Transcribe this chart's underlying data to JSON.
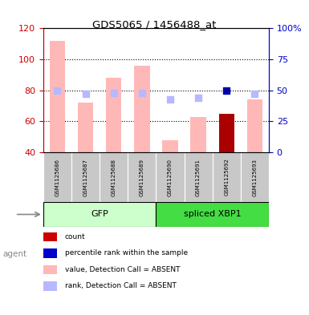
{
  "title": "GDS5065 / 1456488_at",
  "samples": [
    "GSM1125686",
    "GSM1125687",
    "GSM1125688",
    "GSM1125689",
    "GSM1125690",
    "GSM1125691",
    "GSM1125692",
    "GSM1125693"
  ],
  "groups": [
    {
      "name": "GFP",
      "indices": [
        0,
        1,
        2,
        3
      ],
      "bg_color": "#ccffcc"
    },
    {
      "name": "spliced XBP1",
      "indices": [
        4,
        5,
        6,
        7
      ],
      "bg_color": "#44dd44"
    }
  ],
  "ylim_left": [
    40,
    120
  ],
  "ylim_right": [
    0,
    100
  ],
  "yticks_left": [
    40,
    60,
    80,
    100,
    120
  ],
  "ytick_labels_right": [
    "0",
    "25",
    "50",
    "75",
    "100%"
  ],
  "absent_value_bars": [
    112,
    72,
    88,
    96,
    48,
    63,
    0,
    74
  ],
  "absent_rank_dots_right": [
    50,
    47,
    48,
    48,
    43,
    44,
    0,
    47
  ],
  "count_bars": [
    0,
    0,
    0,
    0,
    0,
    0,
    65,
    0
  ],
  "percentile_rank_dots_right": [
    0,
    0,
    0,
    0,
    0,
    0,
    50,
    0
  ],
  "absent_value_color": "#ffb8b8",
  "absent_rank_color": "#b8b8ff",
  "count_color": "#aa0000",
  "percentile_color": "#0000aa",
  "bar_width": 0.55,
  "dot_size": 40,
  "legend_items": [
    {
      "color": "#cc0000",
      "label": "count"
    },
    {
      "color": "#0000cc",
      "label": "percentile rank within the sample"
    },
    {
      "color": "#ffb8b8",
      "label": "value, Detection Call = ABSENT"
    },
    {
      "color": "#b8b8ff",
      "label": "rank, Detection Call = ABSENT"
    }
  ],
  "left_axis_color": "#cc0000",
  "right_axis_color": "#0000cc",
  "sample_bg_color": "#c8c8c8",
  "plot_bg_color": "#ffffff"
}
